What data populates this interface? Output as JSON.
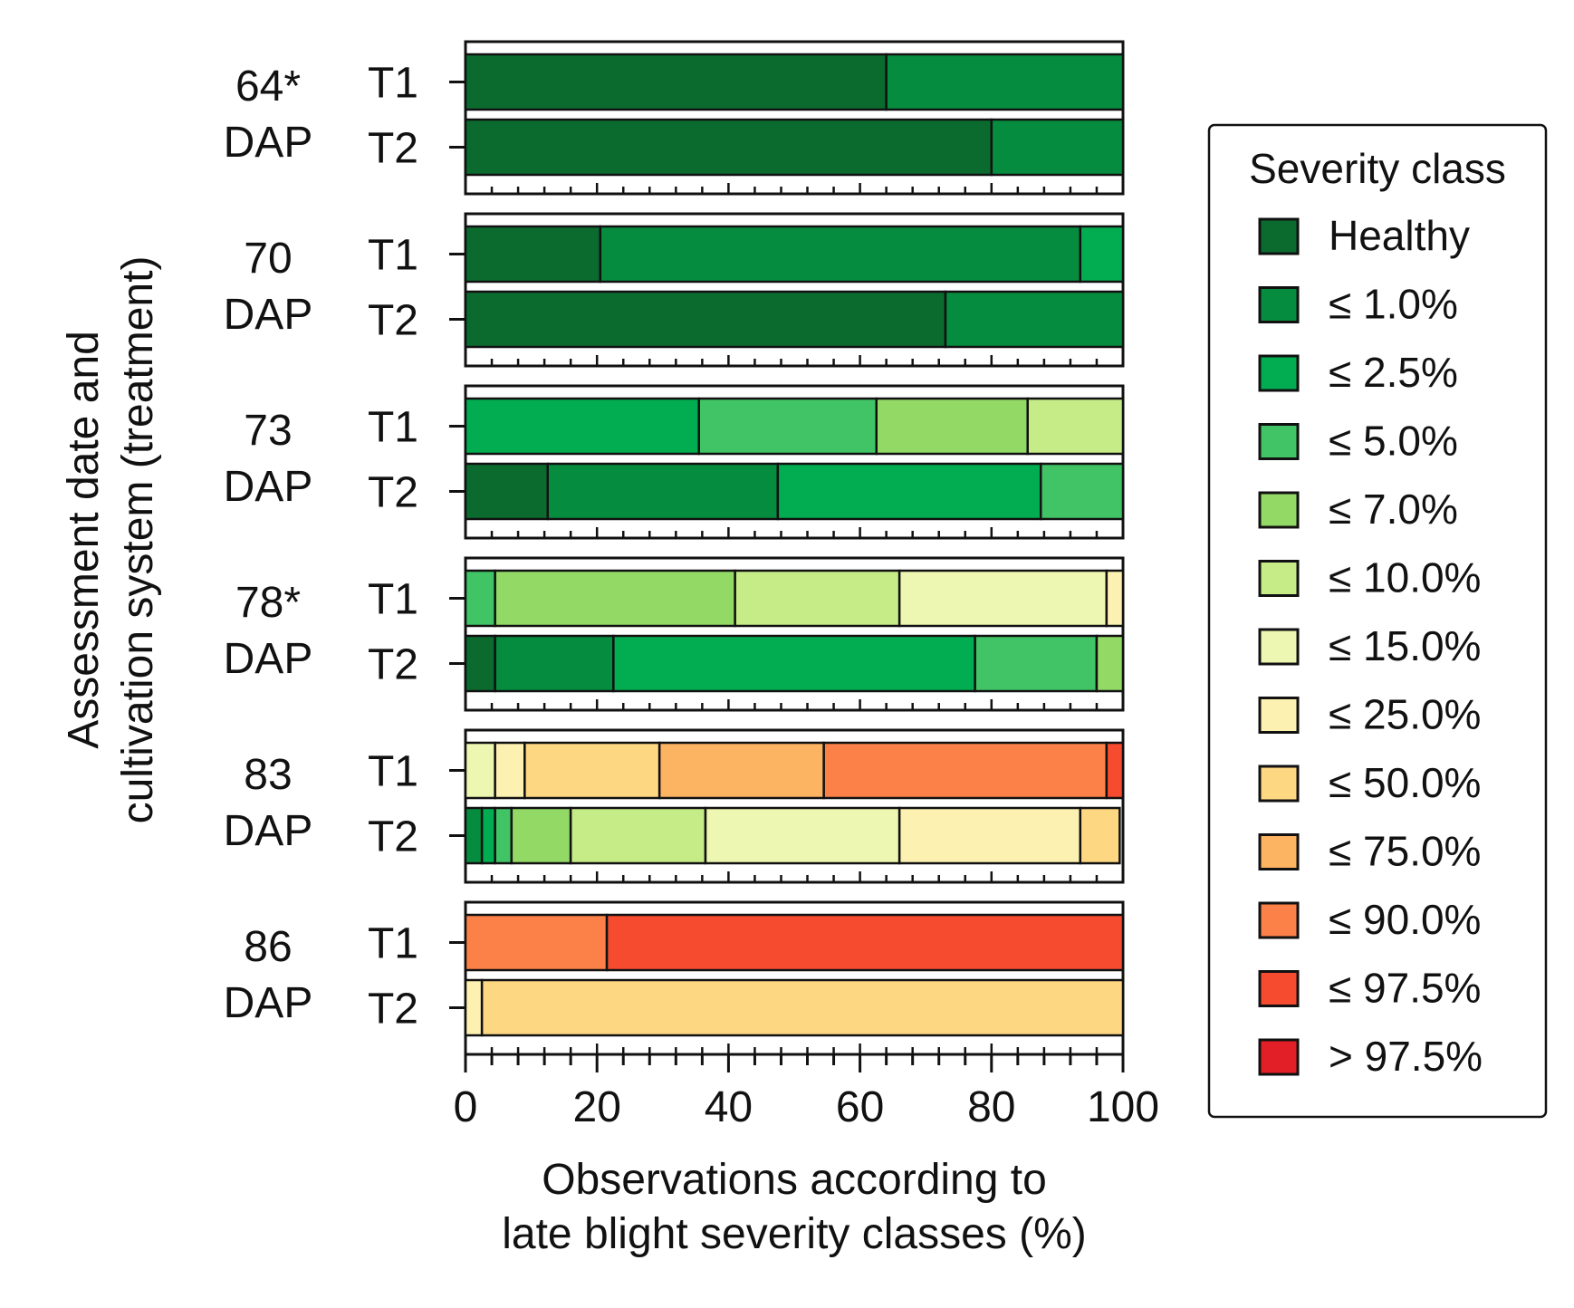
{
  "chart_data": {
    "type": "stacked-bar-horizontal",
    "title": "",
    "xlabel_lines": [
      "Observations according to",
      "late blight severity classes (%)"
    ],
    "ylabel_lines": [
      "Assessment date and",
      "cultivation system (treatment)"
    ],
    "xlim": [
      0,
      100
    ],
    "x_ticks": [
      "0",
      "20",
      "40",
      "60",
      "80",
      "100"
    ],
    "legend": {
      "title": "Severity class",
      "position": "right",
      "classes": [
        {
          "label": "Healthy",
          "color": "#0b6b2f"
        },
        {
          "label": "≤ 1.0%",
          "color": "#068c3e"
        },
        {
          "label": "≤ 2.5%",
          "color": "#02ad51"
        },
        {
          "label": "≤ 5.0%",
          "color": "#40c465"
        },
        {
          "label": "≤ 7.0%",
          "color": "#92d966"
        },
        {
          "label": "≤ 10.0%",
          "color": "#c6ec87"
        },
        {
          "label": "≤ 15.0%",
          "color": "#eef7b1"
        },
        {
          "label": "≤ 25.0%",
          "color": "#fdf1b1"
        },
        {
          "label": "≤ 50.0%",
          "color": "#fed783"
        },
        {
          "label": "≤ 75.0%",
          "color": "#fcb362"
        },
        {
          "label": "≤ 90.0%",
          "color": "#fb8148"
        },
        {
          "label": "≤ 97.5%",
          "color": "#f74b30"
        },
        {
          "label": "> 97.5%",
          "color": "#e21f26"
        }
      ]
    },
    "groups": [
      {
        "date_label": "64*",
        "unit_label": "DAP",
        "bars": [
          {
            "treatment": "T1",
            "values": [
              64,
              36,
              0,
              0,
              0,
              0,
              0,
              0,
              0,
              0,
              0,
              0,
              0
            ]
          },
          {
            "treatment": "T2",
            "values": [
              80,
              20,
              0,
              0,
              0,
              0,
              0,
              0,
              0,
              0,
              0,
              0,
              0
            ]
          }
        ]
      },
      {
        "date_label": "70",
        "unit_label": "DAP",
        "bars": [
          {
            "treatment": "T1",
            "values": [
              20.5,
              73,
              6.5,
              0,
              0,
              0,
              0,
              0,
              0,
              0,
              0,
              0,
              0
            ]
          },
          {
            "treatment": "T2",
            "values": [
              73,
              27,
              0,
              0,
              0,
              0,
              0,
              0,
              0,
              0,
              0,
              0,
              0
            ]
          }
        ]
      },
      {
        "date_label": "73",
        "unit_label": "DAP",
        "bars": [
          {
            "treatment": "T1",
            "values": [
              0,
              0,
              35.5,
              27,
              23,
              14.5,
              0,
              0,
              0,
              0,
              0,
              0,
              0
            ]
          },
          {
            "treatment": "T2",
            "values": [
              12.5,
              35,
              40,
              12.5,
              0,
              0,
              0,
              0,
              0,
              0,
              0,
              0,
              0
            ]
          }
        ]
      },
      {
        "date_label": "78*",
        "unit_label": "DAP",
        "bars": [
          {
            "treatment": "T1",
            "values": [
              0,
              0,
              0,
              4.5,
              36.5,
              25,
              31.5,
              2.5,
              0,
              0,
              0,
              0,
              0
            ]
          },
          {
            "treatment": "T2",
            "values": [
              4.5,
              18,
              55,
              18.5,
              4,
              0,
              0,
              0,
              0,
              0,
              0,
              0,
              0
            ]
          }
        ]
      },
      {
        "date_label": "83",
        "unit_label": "DAP",
        "bars": [
          {
            "treatment": "T1",
            "values": [
              0,
              0,
              0,
              0,
              0,
              0,
              4.5,
              4.5,
              20.5,
              25,
              43,
              2.5,
              0
            ]
          },
          {
            "treatment": "T2",
            "values": [
              0,
              2.5,
              2,
              2.5,
              9,
              20.5,
              29.5,
              27.5,
              6,
              0,
              0,
              0,
              0
            ]
          }
        ]
      },
      {
        "date_label": "86",
        "unit_label": "DAP",
        "bars": [
          {
            "treatment": "T1",
            "values": [
              0,
              0,
              0,
              0,
              0,
              0,
              0,
              0,
              0,
              0,
              21.5,
              78.5,
              0
            ]
          },
          {
            "treatment": "T2",
            "values": [
              0,
              0,
              0,
              0,
              0,
              0,
              0,
              2.5,
              97.5,
              0,
              0,
              0,
              0
            ]
          }
        ]
      }
    ]
  }
}
